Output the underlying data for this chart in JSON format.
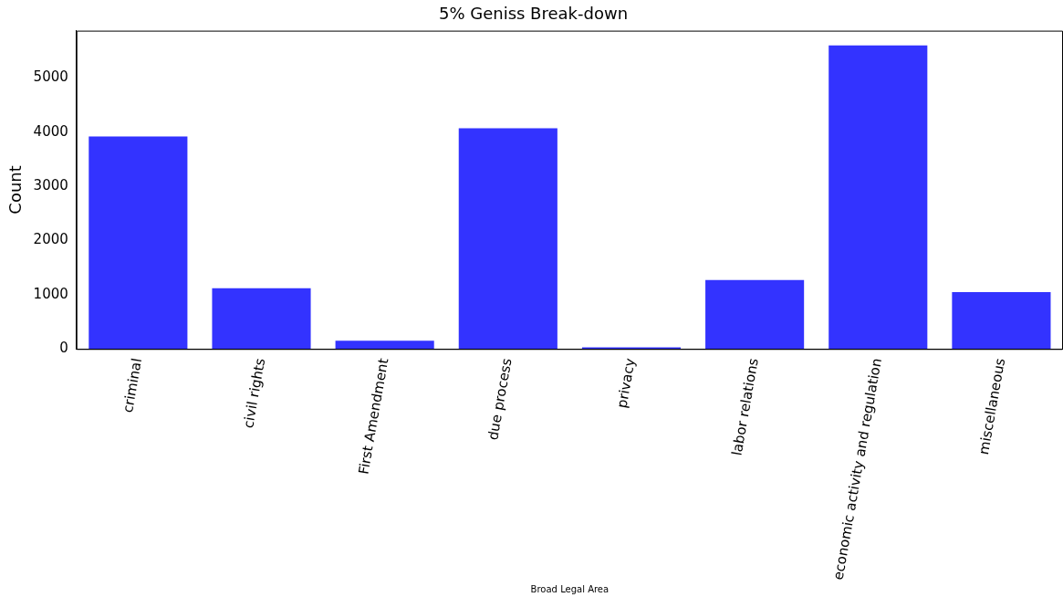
{
  "chart_data": {
    "type": "bar",
    "title": "5% Geniss Break-down",
    "xlabel": "Broad Legal Area",
    "ylabel": "Count",
    "categories": [
      "criminal",
      "civil rights",
      "First Amendment",
      "due process",
      "privacy",
      "labor relations",
      "economic activity and regulation",
      "miscellaneous"
    ],
    "values": [
      3920,
      1120,
      150,
      4070,
      30,
      1270,
      5600,
      1050
    ],
    "color": "#3333ff",
    "ylim": [
      0,
      5870
    ],
    "yticks": [
      0,
      1000,
      2000,
      3000,
      4000,
      5000
    ],
    "grid": false,
    "legend": false
  }
}
